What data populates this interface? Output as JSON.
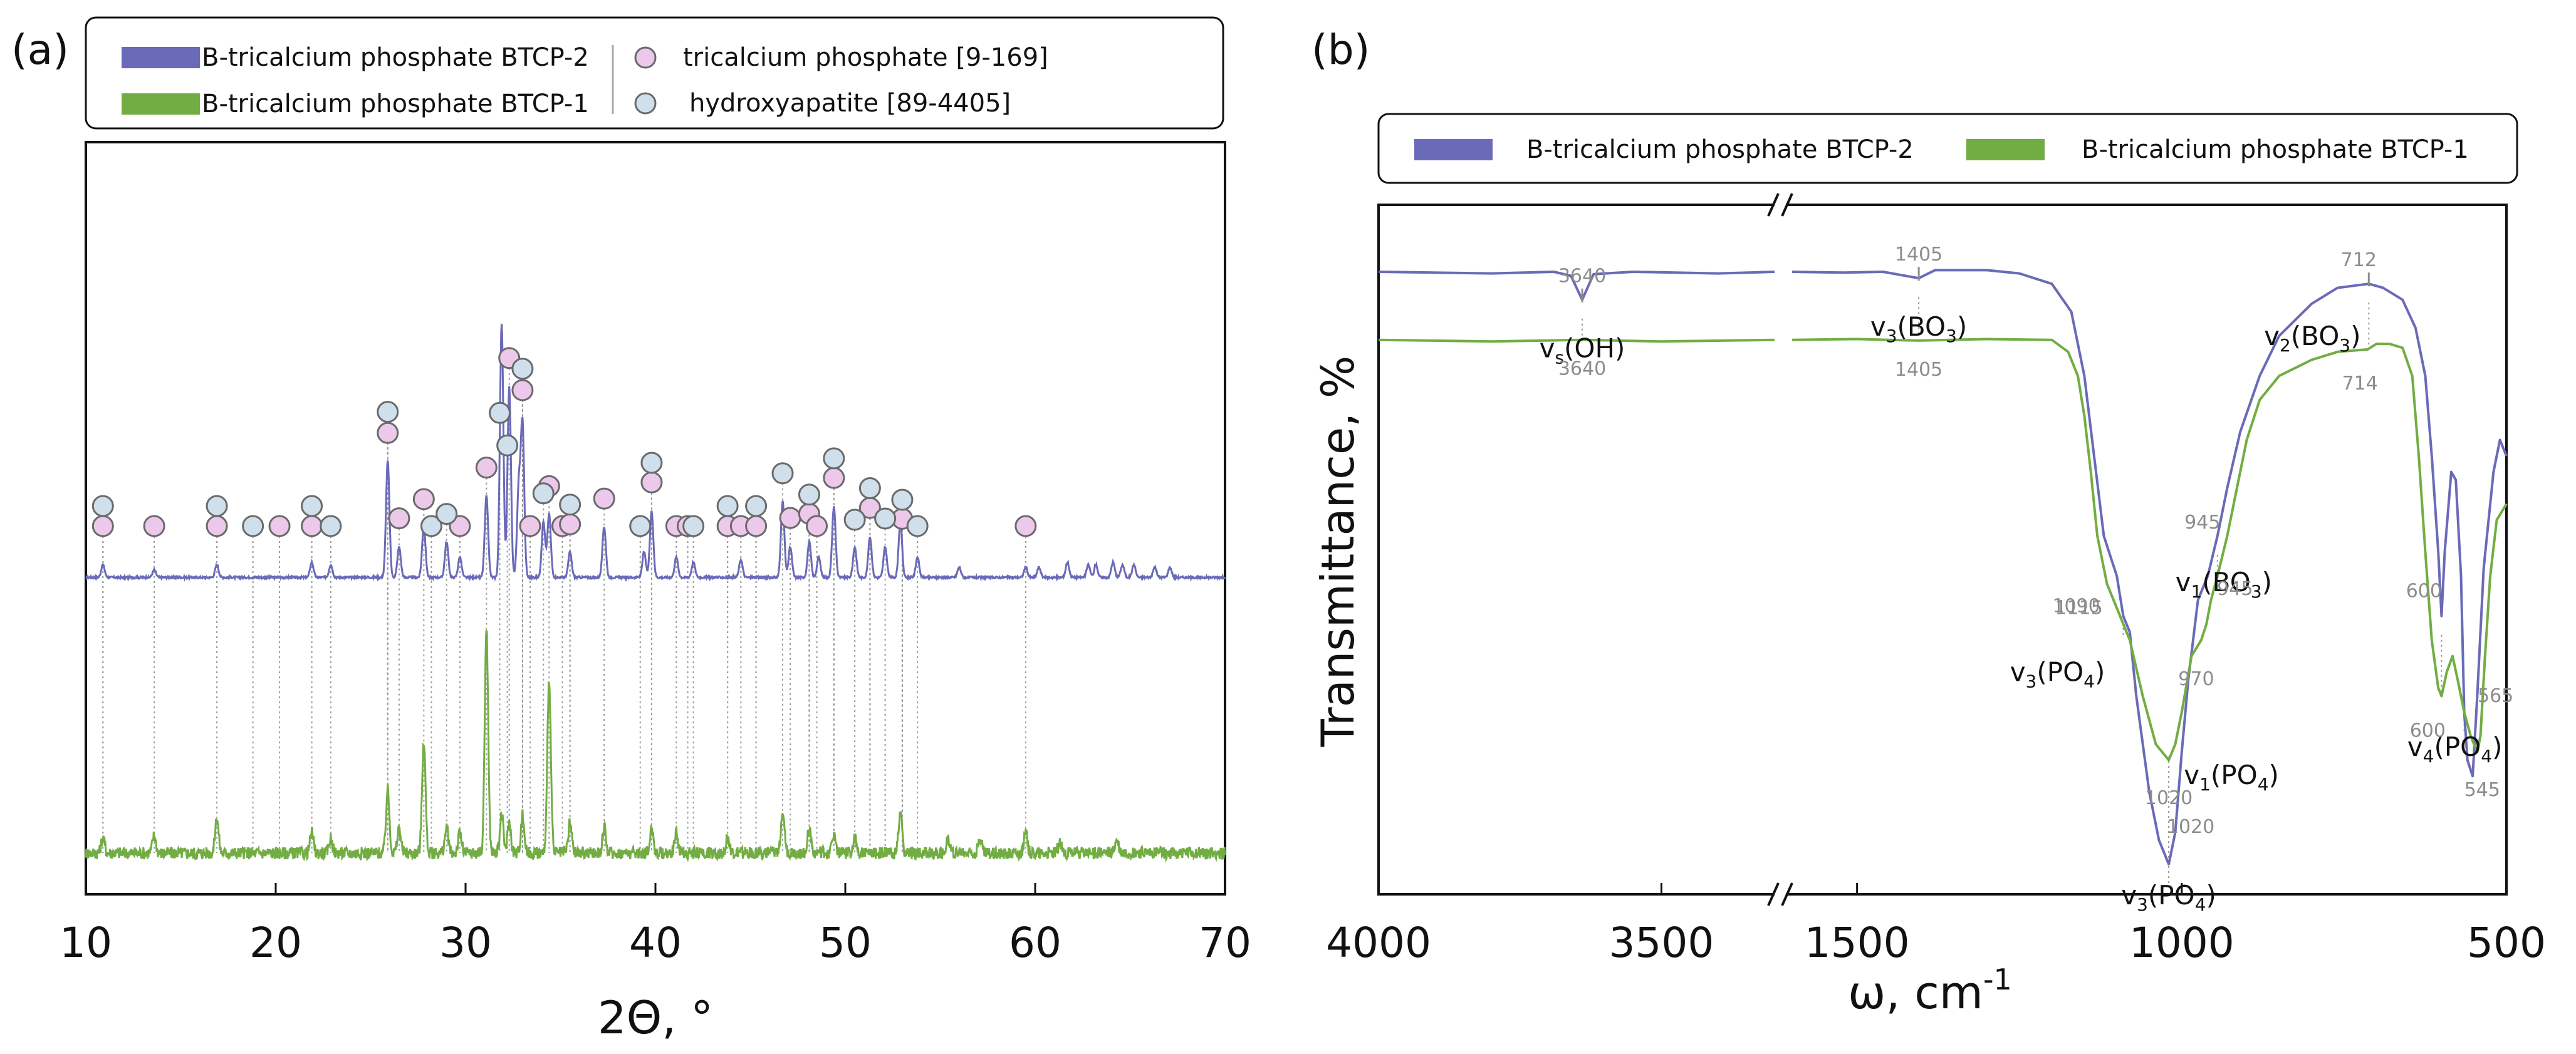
{
  "figure": {
    "panel_a_label": "(a)",
    "panel_b_label": "(b)"
  },
  "colors": {
    "btcp2": "#6a6ab9",
    "btcp1": "#72ad43",
    "tcp_marker_fill": "#ecc8ea",
    "ha_marker_fill": "#cfe0ec",
    "marker_stroke": "#6a6a6a",
    "dotted_line": "#9a9a9a",
    "annotation_number": "#8c8c8c",
    "axis": "#111111"
  },
  "chart_data": [
    {
      "id": "xrd",
      "type": "line",
      "title": "",
      "xlabel": "2Θ, °",
      "ylabel": "",
      "xlim": [
        10,
        70
      ],
      "xticks": [
        "10",
        "20",
        "30",
        "40",
        "50",
        "60",
        "70"
      ],
      "grid": false,
      "legend": {
        "position": "top",
        "entries": [
          {
            "key": "btcp2",
            "label": "B-tricalcium phosphate BTCP-2",
            "kind": "line"
          },
          {
            "key": "btcp1",
            "label": "B-tricalcium phosphate BTCP-1",
            "kind": "line"
          },
          {
            "key": "tcp",
            "label": "tricalcium phosphate [9-169]",
            "kind": "marker"
          },
          {
            "key": "ha",
            "label": "hydroxyapatite [89-4405]",
            "kind": "marker"
          }
        ]
      },
      "series": [
        {
          "name": "B-tricalcium phosphate BTCP-2",
          "color_key": "btcp2",
          "baseline": 0,
          "noise": 0.004,
          "peaks": [
            [
              10.9,
              0.05
            ],
            [
              13.6,
              0.03
            ],
            [
              16.9,
              0.05
            ],
            [
              21.9,
              0.06
            ],
            [
              22.9,
              0.05
            ],
            [
              25.9,
              0.46
            ],
            [
              26.5,
              0.12
            ],
            [
              27.8,
              0.2
            ],
            [
              29.0,
              0.14
            ],
            [
              29.7,
              0.08
            ],
            [
              31.1,
              0.32
            ],
            [
              31.9,
              1.0
            ],
            [
              32.3,
              0.75
            ],
            [
              32.8,
              0.35
            ],
            [
              33.0,
              0.6
            ],
            [
              34.1,
              0.22
            ],
            [
              34.4,
              0.25
            ],
            [
              35.5,
              0.1
            ],
            [
              37.3,
              0.2
            ],
            [
              39.4,
              0.1
            ],
            [
              39.8,
              0.26
            ],
            [
              41.1,
              0.08
            ],
            [
              42.0,
              0.06
            ],
            [
              44.5,
              0.07
            ],
            [
              46.7,
              0.3
            ],
            [
              47.1,
              0.12
            ],
            [
              48.1,
              0.14
            ],
            [
              48.6,
              0.08
            ],
            [
              49.4,
              0.28
            ],
            [
              50.5,
              0.12
            ],
            [
              51.3,
              0.16
            ],
            [
              52.1,
              0.12
            ],
            [
              52.9,
              0.22
            ],
            [
              53.8,
              0.08
            ],
            [
              56.0,
              0.04
            ],
            [
              59.5,
              0.04
            ],
            [
              60.2,
              0.04
            ],
            [
              61.7,
              0.06
            ],
            [
              62.8,
              0.05
            ],
            [
              63.2,
              0.05
            ],
            [
              64.1,
              0.06
            ],
            [
              64.6,
              0.05
            ],
            [
              65.2,
              0.05
            ],
            [
              66.3,
              0.04
            ],
            [
              67.1,
              0.04
            ]
          ]
        },
        {
          "name": "B-tricalcium phosphate BTCP-1",
          "color_key": "btcp1",
          "baseline": 0,
          "noise": 0.025,
          "peaks": [
            [
              10.9,
              0.06
            ],
            [
              13.6,
              0.07
            ],
            [
              16.9,
              0.14
            ],
            [
              21.9,
              0.08
            ],
            [
              22.9,
              0.06
            ],
            [
              25.9,
              0.25
            ],
            [
              26.5,
              0.1
            ],
            [
              27.8,
              0.45
            ],
            [
              29.0,
              0.1
            ],
            [
              29.7,
              0.08
            ],
            [
              31.1,
              0.9
            ],
            [
              31.9,
              0.15
            ],
            [
              32.3,
              0.12
            ],
            [
              33.0,
              0.15
            ],
            [
              34.4,
              0.7
            ],
            [
              35.5,
              0.12
            ],
            [
              37.3,
              0.1
            ],
            [
              39.8,
              0.1
            ],
            [
              41.1,
              0.08
            ],
            [
              43.8,
              0.06
            ],
            [
              46.7,
              0.18
            ],
            [
              48.1,
              0.1
            ],
            [
              49.4,
              0.08
            ],
            [
              50.5,
              0.06
            ],
            [
              52.9,
              0.16
            ],
            [
              55.4,
              0.06
            ],
            [
              57.1,
              0.06
            ],
            [
              59.5,
              0.08
            ],
            [
              61.3,
              0.04
            ],
            [
              64.3,
              0.05
            ]
          ]
        }
      ],
      "markers": {
        "tcp_2theta": [
          10.9,
          13.6,
          16.9,
          20.2,
          21.9,
          25.9,
          26.5,
          27.8,
          29.7,
          31.1,
          32.3,
          33.0,
          33.4,
          34.4,
          35.1,
          35.5,
          37.3,
          39.8,
          41.1,
          41.7,
          43.8,
          44.5,
          45.3,
          47.1,
          48.1,
          48.5,
          49.4,
          51.3,
          53.0,
          59.5
        ],
        "ha_2theta": [
          10.9,
          16.9,
          18.8,
          21.9,
          22.9,
          25.9,
          28.2,
          29.0,
          31.8,
          32.2,
          33.0,
          34.1,
          35.5,
          39.2,
          39.8,
          42.0,
          43.8,
          45.3,
          46.7,
          48.1,
          49.4,
          50.5,
          51.3,
          52.1,
          53.0,
          53.8
        ]
      }
    },
    {
      "id": "ftir",
      "type": "line",
      "title": "",
      "xlabel": "ω, cm",
      "xlabel_superscript": "-1",
      "ylabel": "Transmittance, %",
      "axis_break": true,
      "xlim_left": [
        4000,
        3300
      ],
      "xlim_right": [
        1600,
        500
      ],
      "xticks": [
        {
          "value": 4000,
          "label": "4000",
          "segment": "left"
        },
        {
          "value": 3500,
          "label": "3500",
          "segment": "left"
        },
        {
          "value": 1500,
          "label": "1500",
          "segment": "right"
        },
        {
          "value": 1000,
          "label": "1000",
          "segment": "right"
        },
        {
          "value": 500,
          "label": "500",
          "segment": "right"
        }
      ],
      "grid": false,
      "legend": {
        "position": "top",
        "entries": [
          {
            "key": "btcp2",
            "label": "B-tricalcium phosphate BTCP-2"
          },
          {
            "key": "btcp1",
            "label": "B-tricalcium phosphate BTCP-1"
          }
        ]
      },
      "series": [
        {
          "name": "B-tricalcium phosphate BTCP-2",
          "color_key": "btcp2",
          "points_left": [
            [
              4000,
              0.93
            ],
            [
              3800,
              0.928
            ],
            [
              3690,
              0.93
            ],
            [
              3660,
              0.925
            ],
            [
              3640,
              0.895
            ],
            [
              3620,
              0.927
            ],
            [
              3550,
              0.93
            ],
            [
              3400,
              0.928
            ],
            [
              3300,
              0.93
            ]
          ],
          "points_right": [
            [
              1600,
              0.93
            ],
            [
              1520,
              0.929
            ],
            [
              1460,
              0.93
            ],
            [
              1405,
              0.922
            ],
            [
              1380,
              0.932
            ],
            [
              1300,
              0.932
            ],
            [
              1250,
              0.928
            ],
            [
              1200,
              0.915
            ],
            [
              1170,
              0.88
            ],
            [
              1150,
              0.8
            ],
            [
              1135,
              0.7
            ],
            [
              1120,
              0.6
            ],
            [
              1100,
              0.55
            ],
            [
              1090,
              0.5
            ],
            [
              1080,
              0.48
            ],
            [
              1070,
              0.4
            ],
            [
              1050,
              0.28
            ],
            [
              1035,
              0.22
            ],
            [
              1020,
              0.19
            ],
            [
              1010,
              0.23
            ],
            [
              1000,
              0.33
            ],
            [
              990,
              0.42
            ],
            [
              975,
              0.52
            ],
            [
              960,
              0.55
            ],
            [
              945,
              0.6
            ],
            [
              930,
              0.66
            ],
            [
              910,
              0.73
            ],
            [
              880,
              0.8
            ],
            [
              850,
              0.85
            ],
            [
              800,
              0.89
            ],
            [
              760,
              0.91
            ],
            [
              712,
              0.915
            ],
            [
              690,
              0.91
            ],
            [
              660,
              0.895
            ],
            [
              640,
              0.86
            ],
            [
              625,
              0.8
            ],
            [
              615,
              0.7
            ],
            [
              605,
              0.58
            ],
            [
              600,
              0.5
            ],
            [
              595,
              0.58
            ],
            [
              585,
              0.68
            ],
            [
              578,
              0.67
            ],
            [
              570,
              0.55
            ],
            [
              565,
              0.38
            ],
            [
              560,
              0.32
            ],
            [
              552,
              0.3
            ],
            [
              545,
              0.4
            ],
            [
              535,
              0.56
            ],
            [
              520,
              0.68
            ],
            [
              510,
              0.72
            ],
            [
              500,
              0.7
            ]
          ]
        },
        {
          "name": "B-tricalcium phosphate BTCP-1",
          "color_key": "btcp1",
          "points_left": [
            [
              4000,
              0.845
            ],
            [
              3800,
              0.843
            ],
            [
              3640,
              0.845
            ],
            [
              3500,
              0.843
            ],
            [
              3300,
              0.845
            ]
          ],
          "points_right": [
            [
              1600,
              0.845
            ],
            [
              1500,
              0.846
            ],
            [
              1405,
              0.844
            ],
            [
              1300,
              0.846
            ],
            [
              1200,
              0.845
            ],
            [
              1175,
              0.83
            ],
            [
              1160,
              0.8
            ],
            [
              1150,
              0.75
            ],
            [
              1140,
              0.68
            ],
            [
              1130,
              0.6
            ],
            [
              1115,
              0.54
            ],
            [
              1100,
              0.51
            ],
            [
              1080,
              0.47
            ],
            [
              1060,
              0.4
            ],
            [
              1040,
              0.34
            ],
            [
              1020,
              0.32
            ],
            [
              1010,
              0.34
            ],
            [
              1000,
              0.38
            ],
            [
              985,
              0.45
            ],
            [
              970,
              0.47
            ],
            [
              962,
              0.49
            ],
            [
              955,
              0.52
            ],
            [
              945,
              0.55
            ],
            [
              930,
              0.6
            ],
            [
              915,
              0.66
            ],
            [
              900,
              0.72
            ],
            [
              880,
              0.77
            ],
            [
              850,
              0.8
            ],
            [
              800,
              0.82
            ],
            [
              760,
              0.83
            ],
            [
              714,
              0.833
            ],
            [
              700,
              0.84
            ],
            [
              680,
              0.84
            ],
            [
              660,
              0.835
            ],
            [
              645,
              0.8
            ],
            [
              635,
              0.7
            ],
            [
              625,
              0.58
            ],
            [
              615,
              0.47
            ],
            [
              605,
              0.41
            ],
            [
              600,
              0.4
            ],
            [
              592,
              0.43
            ],
            [
              583,
              0.45
            ],
            [
              575,
              0.42
            ],
            [
              565,
              0.38
            ],
            [
              555,
              0.35
            ],
            [
              545,
              0.33
            ],
            [
              540,
              0.35
            ],
            [
              533,
              0.45
            ],
            [
              525,
              0.55
            ],
            [
              515,
              0.62
            ],
            [
              500,
              0.64
            ]
          ]
        }
      ],
      "annotations": [
        {
          "series": "btcp2",
          "wn": 3640,
          "number": "3640",
          "tick": "up",
          "label_main": "v",
          "label_sub": "s",
          "label_rest": "(OH)"
        },
        {
          "series": "btcp2",
          "wn": 1405,
          "number": "1405",
          "tick": "up",
          "label_main": "v",
          "label_sub": "3",
          "label_rest": "(BO",
          "label_sub2": "3",
          "label_end": ")"
        },
        {
          "series": "btcp2",
          "wn": 712,
          "number": "712",
          "tick": "up",
          "label_main": "v",
          "label_sub": "2",
          "label_rest": "(BO",
          "label_sub2": "3",
          "label_end": ")"
        },
        {
          "series": "btcp2",
          "wn": 1090,
          "number": "1090",
          "label_main": "v",
          "label_sub": "3",
          "label_rest": "(PO",
          "label_sub2": "4",
          "label_end": ")"
        },
        {
          "series": "btcp2",
          "wn": 945,
          "number": "945",
          "label_main": "v",
          "label_sub": "1",
          "label_rest": "(BO",
          "label_sub2": "3",
          "label_end": ")"
        },
        {
          "series": "btcp2",
          "wn": 1020,
          "number": "1020",
          "label_main": "v",
          "label_sub": "3",
          "label_rest": "(PO",
          "label_sub2": "4",
          "label_end": ")"
        },
        {
          "series": "btcp2",
          "wn": 600,
          "number": "600"
        },
        {
          "series": "btcp2",
          "wn": 565,
          "number": "565",
          "label_main": "v",
          "label_sub": "4",
          "label_rest": "(PO",
          "label_sub2": "4",
          "label_end": ")"
        },
        {
          "series": "btcp1",
          "wn": 3640,
          "number": "3640"
        },
        {
          "series": "btcp1",
          "wn": 1405,
          "number": "1405"
        },
        {
          "series": "btcp1",
          "wn": 714,
          "number": "714"
        },
        {
          "series": "btcp1",
          "wn": 1115,
          "number": "1115"
        },
        {
          "series": "btcp1",
          "wn": 945,
          "number": "945"
        },
        {
          "series": "btcp1",
          "wn": 970,
          "number": "970"
        },
        {
          "series": "btcp1",
          "wn": 1020,
          "number": "1020",
          "label_main": "v",
          "label_sub": "1",
          "label_rest": "(PO",
          "label_sub2": "4",
          "label_end": ")"
        },
        {
          "series": "btcp1",
          "wn": 600,
          "number": "600"
        },
        {
          "series": "btcp1",
          "wn": 545,
          "number": "545"
        }
      ]
    }
  ]
}
